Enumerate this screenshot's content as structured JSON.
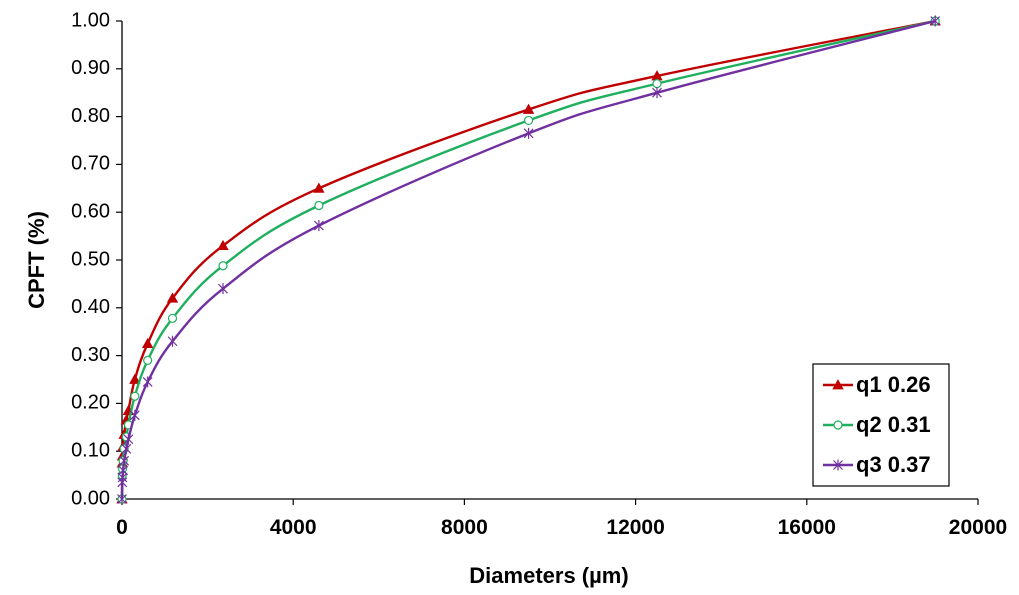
{
  "chart_data": {
    "type": "line",
    "xlabel": "Diameters (µm)",
    "ylabel": "CPFT (%)",
    "xlim": [
      0,
      20000
    ],
    "ylim": [
      0.0,
      1.0
    ],
    "x_ticks": [
      "0",
      "4000",
      "8000",
      "12000",
      "16000",
      "20000"
    ],
    "y_ticks": [
      "0.00",
      "0.10",
      "0.20",
      "0.30",
      "0.40",
      "0.50",
      "0.60",
      "0.70",
      "0.80",
      "0.90",
      "1.00"
    ],
    "grid": false,
    "legend_position": "bottom-right",
    "x": [
      0,
      6,
      12,
      25,
      50,
      100,
      150,
      300,
      600,
      1180,
      2360,
      4600,
      9500,
      12500,
      19000
    ],
    "series": [
      {
        "name": "q1 0.26",
        "color": "#C00000",
        "marker": "triangle",
        "values": [
          0.0,
          0.075,
          0.09,
          0.11,
          0.135,
          0.165,
          0.185,
          0.25,
          0.325,
          0.42,
          0.53,
          0.65,
          0.815,
          0.885,
          1.0
        ]
      },
      {
        "name": "q2 0.31",
        "color": "#1FAF5F",
        "marker": "circle",
        "values": [
          0.0,
          0.05,
          0.063,
          0.08,
          0.105,
          0.13,
          0.155,
          0.215,
          0.29,
          0.378,
          0.488,
          0.614,
          0.792,
          0.869,
          1.0
        ]
      },
      {
        "name": "q3 0.37",
        "color": "#7030A0",
        "marker": "star",
        "values": [
          0.0,
          0.035,
          0.045,
          0.06,
          0.08,
          0.105,
          0.125,
          0.175,
          0.245,
          0.33,
          0.44,
          0.572,
          0.765,
          0.85,
          1.0
        ]
      }
    ]
  }
}
